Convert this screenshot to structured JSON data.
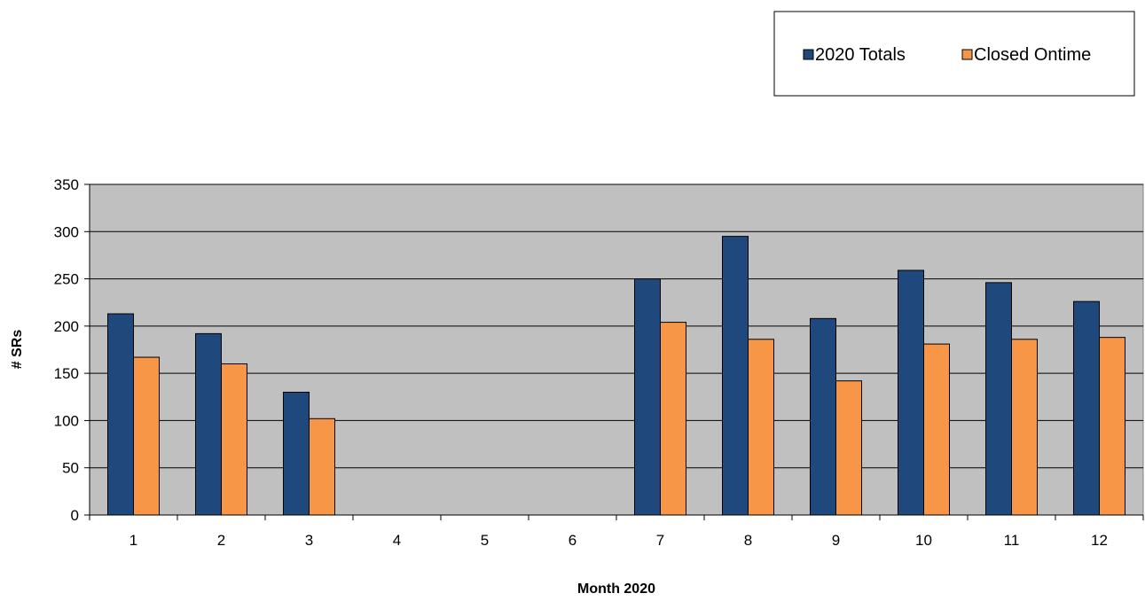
{
  "chart_data": {
    "type": "bar",
    "title": "",
    "xlabel": "Month 2020",
    "ylabel": "# SRs",
    "categories": [
      "1",
      "2",
      "3",
      "4",
      "5",
      "6",
      "7",
      "8",
      "9",
      "10",
      "11",
      "12"
    ],
    "series": [
      {
        "name": "2020 Totals",
        "color": "#1f497d",
        "values": [
          213,
          192,
          130,
          0,
          0,
          0,
          250,
          295,
          208,
          259,
          246,
          226
        ]
      },
      {
        "name": "Closed Ontime",
        "color": "#f79646",
        "values": [
          167,
          160,
          102,
          0,
          0,
          0,
          204,
          186,
          142,
          181,
          186,
          188
        ]
      }
    ],
    "ylim": [
      0,
      350
    ],
    "yticks": [
      0,
      50,
      100,
      150,
      200,
      250,
      300,
      350
    ],
    "grid": true,
    "plot_background": "#c0c0c0",
    "legend_position": "top-right"
  }
}
